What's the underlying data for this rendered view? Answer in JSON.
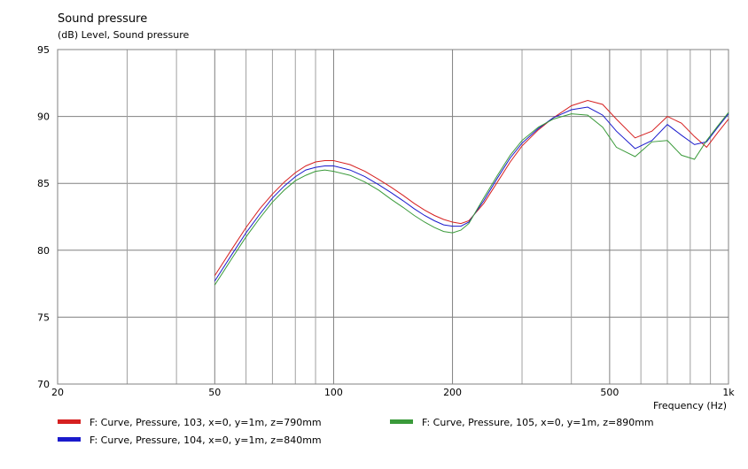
{
  "chart_data": {
    "type": "line",
    "title": "Sound pressure",
    "subtitle": "(dB)  Level, Sound pressure",
    "xlabel": "Frequency  (Hz)",
    "ylabel": "",
    "x_scale": "log",
    "xlim": [
      20,
      1000
    ],
    "ylim": [
      70,
      95
    ],
    "grid": true,
    "legend_position": "bottom",
    "x_major_ticks": [
      {
        "value": 20,
        "label": "20"
      },
      {
        "value": 50,
        "label": "50"
      },
      {
        "value": 100,
        "label": "100"
      },
      {
        "value": 200,
        "label": "200"
      },
      {
        "value": 500,
        "label": "500"
      },
      {
        "value": 1000,
        "label": "1k"
      }
    ],
    "x_minor_gridlines": [
      30,
      40,
      60,
      70,
      80,
      90,
      300,
      400,
      600,
      700,
      800,
      900
    ],
    "y_ticks": [
      {
        "value": 95,
        "label": "95"
      },
      {
        "value": 90,
        "label": "90"
      },
      {
        "value": 85,
        "label": "85"
      },
      {
        "value": 80,
        "label": "80"
      },
      {
        "value": 75,
        "label": "75"
      },
      {
        "value": 70,
        "label": "70"
      }
    ],
    "series": [
      {
        "name": "F: Curve, Pressure, 103, x=0, y=1m, z=790mm",
        "color": "#d62020",
        "x": [
          50,
          55,
          60,
          65,
          70,
          75,
          80,
          85,
          90,
          95,
          100,
          110,
          120,
          130,
          140,
          150,
          160,
          170,
          180,
          190,
          200,
          210,
          220,
          240,
          260,
          280,
          300,
          330,
          360,
          400,
          440,
          480,
          520,
          580,
          640,
          700,
          760,
          820,
          880,
          940,
          1000
        ],
        "y": [
          78.1,
          80.0,
          81.7,
          83.1,
          84.2,
          85.1,
          85.8,
          86.3,
          86.6,
          86.7,
          86.7,
          86.4,
          85.9,
          85.3,
          84.7,
          84.1,
          83.5,
          83.0,
          82.6,
          82.3,
          82.1,
          82.0,
          82.2,
          83.5,
          85.1,
          86.6,
          87.8,
          89.0,
          89.9,
          90.8,
          91.2,
          90.9,
          89.8,
          88.4,
          88.9,
          90.0,
          89.5,
          88.5,
          87.7,
          88.8,
          89.8
        ]
      },
      {
        "name": "F: Curve, Pressure, 104, x=0, y=1m, z=840mm",
        "color": "#1a1acc",
        "x": [
          50,
          55,
          60,
          65,
          70,
          75,
          80,
          85,
          90,
          95,
          100,
          110,
          120,
          130,
          140,
          150,
          160,
          170,
          180,
          190,
          200,
          210,
          220,
          240,
          260,
          280,
          300,
          330,
          360,
          400,
          440,
          480,
          520,
          580,
          640,
          700,
          760,
          820,
          880,
          940,
          1000
        ],
        "y": [
          77.7,
          79.6,
          81.3,
          82.7,
          83.9,
          84.8,
          85.5,
          86.0,
          86.2,
          86.3,
          86.3,
          86.0,
          85.5,
          84.9,
          84.3,
          83.7,
          83.1,
          82.6,
          82.2,
          81.9,
          81.8,
          81.8,
          82.1,
          83.7,
          85.4,
          86.9,
          88.0,
          89.1,
          89.9,
          90.5,
          90.7,
          90.1,
          88.9,
          87.6,
          88.2,
          89.4,
          88.6,
          87.9,
          88.1,
          89.2,
          90.2
        ]
      },
      {
        "name": "F: Curve, Pressure, 105, x=0, y=1m, z=890mm",
        "color": "#3a9a3a",
        "x": [
          50,
          55,
          60,
          65,
          70,
          75,
          80,
          85,
          90,
          95,
          100,
          110,
          120,
          130,
          140,
          150,
          160,
          170,
          180,
          190,
          200,
          210,
          220,
          240,
          260,
          280,
          300,
          330,
          360,
          400,
          440,
          480,
          520,
          580,
          640,
          700,
          760,
          820,
          880,
          940,
          1000
        ],
        "y": [
          77.4,
          79.3,
          81.0,
          82.4,
          83.6,
          84.5,
          85.2,
          85.6,
          85.9,
          86.0,
          85.9,
          85.6,
          85.1,
          84.5,
          83.8,
          83.2,
          82.6,
          82.1,
          81.7,
          81.4,
          81.3,
          81.5,
          82.0,
          83.9,
          85.6,
          87.1,
          88.2,
          89.2,
          89.8,
          90.2,
          90.1,
          89.2,
          87.7,
          87.0,
          88.1,
          88.2,
          87.1,
          86.8,
          88.2,
          89.3,
          90.3
        ]
      }
    ]
  }
}
